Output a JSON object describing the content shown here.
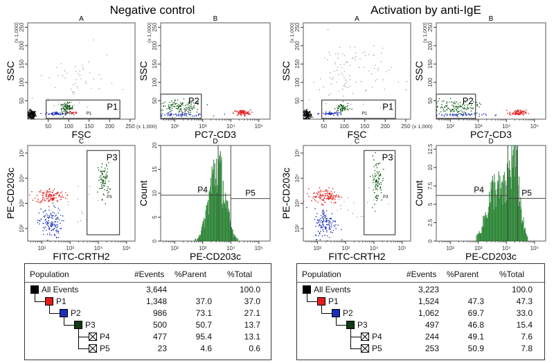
{
  "colors": {
    "black": "#000000",
    "red": "#e41a1a",
    "blue": "#1a2fb8",
    "green": "#0f5a16",
    "hist_fill": "#4cb85a",
    "gate": "#444444",
    "grey": "#777777"
  },
  "halves": [
    {
      "title": "Negative control",
      "plots": [
        {
          "id": "A",
          "letter": "A",
          "type": "scatter",
          "xscale": "linear",
          "yscale": "linear",
          "xlim": [
            0,
            262
          ],
          "ylim": [
            0,
            262
          ],
          "xticks": [
            50,
            100,
            150,
            200,
            250
          ],
          "yticks": [
            50,
            100,
            150,
            200,
            250
          ],
          "xlabel": "FSC",
          "ylabel": "SSC",
          "xunit": "(x 1,000)",
          "yunit": "(x 1,000)",
          "clusters": [
            {
              "center": [
                10,
                12
              ],
              "sd": [
                5,
                6
              ],
              "n": 140,
              "color": "black"
            },
            {
              "center": [
                120,
                100
              ],
              "sd": [
                50,
                50
              ],
              "n": 60,
              "color": "grey"
            },
            {
              "center": [
                70,
                15
              ],
              "sd": [
                13,
                2
              ],
              "n": 60,
              "color": "blue"
            },
            {
              "center": [
                95,
                30
              ],
              "sd": [
                8,
                7
              ],
              "n": 90,
              "color": "green"
            },
            {
              "center": [
                110,
                18
              ],
              "sd": [
                8,
                3
              ],
              "n": 20,
              "color": "red"
            }
          ],
          "gates": [
            {
              "type": "rect",
              "x": [
                45,
                225
              ],
              "y": [
                2,
                52
              ],
              "label": "P1",
              "sublabel": "P1"
            }
          ]
        },
        {
          "id": "B",
          "letter": "B",
          "type": "scatter",
          "xscale": "log",
          "yscale": "linear",
          "xlim": [
            1.5,
            5.4
          ],
          "ylim": [
            0,
            262
          ],
          "xticks": [
            2,
            3,
            4,
            5
          ],
          "yticks": [
            50,
            100,
            150,
            200,
            250
          ],
          "xlabel": "PC7-CD3",
          "ylabel": "SSC",
          "yunit": "(x 1,000)",
          "clusters": [
            {
              "center": [
                2.2,
                33
              ],
              "sd": [
                0.4,
                9
              ],
              "n": 110,
              "color": "green"
            },
            {
              "center": [
                2.2,
                12
              ],
              "sd": [
                0.5,
                2
              ],
              "n": 60,
              "color": "blue"
            },
            {
              "center": [
                4.4,
                17
              ],
              "sd": [
                0.15,
                4
              ],
              "n": 80,
              "color": "red"
            }
          ],
          "gates": [
            {
              "type": "rect",
              "x": [
                1.5,
                2.95
              ],
              "y": [
                2,
                68
              ],
              "label": "P2",
              "sublabel": "P2"
            }
          ]
        },
        {
          "id": "C",
          "letter": "C",
          "type": "scatter",
          "xscale": "log",
          "yscale": "log",
          "xlim": [
            1.5,
            5.3
          ],
          "ylim": [
            1.5,
            5.3
          ],
          "xticks": [
            2,
            3,
            4,
            5
          ],
          "yticks": [
            2,
            3,
            4,
            5
          ],
          "xlabel": "FITC-CRTH2",
          "ylabel": "PE-CD203c",
          "clusters": [
            {
              "center": [
                2.3,
                3.3
              ],
              "sd": [
                0.25,
                0.15
              ],
              "n": 120,
              "color": "red"
            },
            {
              "center": [
                2.3,
                2.2
              ],
              "sd": [
                0.2,
                0.3
              ],
              "n": 130,
              "color": "blue"
            },
            {
              "center": [
                4.2,
                3.9
              ],
              "sd": [
                0.1,
                0.35
              ],
              "n": 80,
              "color": "green"
            },
            {
              "center": [
                3.2,
                3.0
              ],
              "sd": [
                0.5,
                0.4
              ],
              "n": 20,
              "color": "grey"
            }
          ],
          "gates": [
            {
              "type": "rect",
              "x": [
                3.6,
                4.75
              ],
              "y": [
                1.75,
                5.1
              ],
              "label": "P3",
              "sublabel": "P3"
            }
          ]
        },
        {
          "id": "D",
          "letter": "D",
          "type": "histogram",
          "xscale": "log",
          "yscale": "linear",
          "xlim": [
            1.5,
            5.4
          ],
          "ylim": [
            0,
            20
          ],
          "xticks": [
            2,
            3,
            4,
            5
          ],
          "yticks": [
            0,
            5,
            10,
            15,
            20
          ],
          "xlabel": "PE-CD203c",
          "ylabel": "Count",
          "peaks": [
            {
              "mu": 3.5,
              "sd": 0.28,
              "h": 16
            }
          ],
          "vlines": [
            3.55,
            4.0
          ],
          "markers": [
            {
              "label": "P4",
              "x": [
                1.5,
                4.0
              ],
              "y": 9.6
            },
            {
              "label": "P5",
              "x": [
                4.0,
                5.4
              ],
              "y": 8.9
            }
          ]
        }
      ],
      "table": {
        "headers": [
          "Population",
          "#Events",
          "%Parent",
          "%Total"
        ],
        "rows": [
          {
            "name": "All Events",
            "events": "3,644",
            "parent": "",
            "total": "100.0",
            "swatch": "#000000",
            "level": 0
          },
          {
            "name": "P1",
            "events": "1,348",
            "parent": "37.0",
            "total": "37.0",
            "swatch": "#e41a1a",
            "level": 1
          },
          {
            "name": "P2",
            "events": "986",
            "parent": "73.1",
            "total": "27.1",
            "swatch": "#1a2fb8",
            "level": 2
          },
          {
            "name": "P3",
            "events": "500",
            "parent": "50.7",
            "total": "13.7",
            "swatch": "#0f3a12",
            "level": 3
          },
          {
            "name": "P4",
            "events": "477",
            "parent": "95.4",
            "total": "13.1",
            "swatch": "x",
            "level": 4
          },
          {
            "name": "P5",
            "events": "23",
            "parent": "4.6",
            "total": "0.6",
            "swatch": "x",
            "level": 4
          }
        ]
      }
    },
    {
      "title": "Activation by anti-IgE",
      "plots": [
        {
          "id": "A",
          "letter": "A",
          "type": "scatter",
          "xscale": "linear",
          "yscale": "linear",
          "xlim": [
            0,
            262
          ],
          "ylim": [
            0,
            262
          ],
          "xticks": [
            50,
            100,
            150,
            200,
            250
          ],
          "yticks": [
            50,
            100,
            150,
            200,
            250
          ],
          "xlabel": "FSC",
          "ylabel": "SSC",
          "xunit": "(x 1,000)",
          "yunit": "(x 1,000)",
          "clusters": [
            {
              "center": [
                10,
                12
              ],
              "sd": [
                5,
                6
              ],
              "n": 120,
              "color": "black"
            },
            {
              "center": [
                115,
                120
              ],
              "sd": [
                50,
                55
              ],
              "n": 110,
              "color": "grey"
            },
            {
              "center": [
                70,
                15
              ],
              "sd": [
                13,
                2
              ],
              "n": 50,
              "color": "blue"
            },
            {
              "center": [
                95,
                30
              ],
              "sd": [
                8,
                7
              ],
              "n": 60,
              "color": "green"
            }
          ],
          "gates": [
            {
              "type": "rect",
              "x": [
                45,
                225
              ],
              "y": [
                2,
                52
              ],
              "label": "P1",
              "sublabel": "P1"
            }
          ]
        },
        {
          "id": "B",
          "letter": "B",
          "type": "scatter",
          "xscale": "log",
          "yscale": "linear",
          "xlim": [
            1.5,
            5.4
          ],
          "ylim": [
            0,
            262
          ],
          "xticks": [
            2,
            3,
            4,
            5
          ],
          "yticks": [
            50,
            100,
            150,
            200,
            250
          ],
          "xlabel": "PC7-CD3",
          "ylabel": "SSC",
          "yunit": "(x 1,000)",
          "clusters": [
            {
              "center": [
                2.2,
                33
              ],
              "sd": [
                0.4,
                9
              ],
              "n": 110,
              "color": "green"
            },
            {
              "center": [
                2.2,
                12
              ],
              "sd": [
                0.5,
                2
              ],
              "n": 60,
              "color": "blue"
            },
            {
              "center": [
                4.4,
                17
              ],
              "sd": [
                0.15,
                4
              ],
              "n": 80,
              "color": "red"
            }
          ],
          "gates": [
            {
              "type": "rect",
              "x": [
                1.5,
                2.9
              ],
              "y": [
                2,
                68
              ],
              "label": "P2",
              "sublabel": ""
            }
          ]
        },
        {
          "id": "C",
          "letter": "C",
          "type": "scatter",
          "xscale": "log",
          "yscale": "log",
          "xlim": [
            1.5,
            5.3
          ],
          "ylim": [
            1.5,
            5.3
          ],
          "xticks": [
            2,
            3,
            4,
            5
          ],
          "yticks": [
            2,
            3,
            4,
            5
          ],
          "xlabel": "FITC-CRTH2",
          "ylabel": "PE-CD203c",
          "clusters": [
            {
              "center": [
                2.3,
                3.3
              ],
              "sd": [
                0.25,
                0.15
              ],
              "n": 120,
              "color": "red"
            },
            {
              "center": [
                2.3,
                2.2
              ],
              "sd": [
                0.2,
                0.3
              ],
              "n": 130,
              "color": "blue"
            },
            {
              "center": [
                4.1,
                3.9
              ],
              "sd": [
                0.1,
                0.45
              ],
              "n": 90,
              "color": "green"
            },
            {
              "center": [
                3.2,
                3.0
              ],
              "sd": [
                0.5,
                0.4
              ],
              "n": 20,
              "color": "grey"
            }
          ],
          "gates": [
            {
              "type": "rect",
              "x": [
                3.65,
                4.75
              ],
              "y": [
                1.75,
                5.1
              ],
              "label": "P3",
              "sublabel": "P3"
            }
          ]
        },
        {
          "id": "D",
          "letter": "D",
          "type": "histogram",
          "xscale": "log",
          "yscale": "linear",
          "xlim": [
            1.5,
            5.4
          ],
          "ylim": [
            0,
            13
          ],
          "xticks": [
            2,
            3,
            4,
            5
          ],
          "yticks": [
            0,
            2.5,
            5,
            7.5,
            10,
            12.5
          ],
          "xlabel": "PE-CD203c",
          "ylabel": "Count",
          "peaks": [
            {
              "mu": 3.6,
              "sd": 0.3,
              "h": 7.5
            },
            {
              "mu": 4.25,
              "sd": 0.2,
              "h": 11
            }
          ],
          "vlines": [
            4.05,
            4.4
          ],
          "markers": [
            {
              "label": "P4",
              "x": [
                1.5,
                4.05
              ],
              "y": 6.2
            },
            {
              "label": "P5",
              "x": [
                4.05,
                5.4
              ],
              "y": 5.8
            }
          ]
        }
      ],
      "table": {
        "headers": [
          "Population",
          "#Events",
          "%Parent",
          "%Total"
        ],
        "rows": [
          {
            "name": "All Events",
            "events": "3,223",
            "parent": "",
            "total": "100.0",
            "swatch": "#000000",
            "level": 0
          },
          {
            "name": "P1",
            "events": "1,524",
            "parent": "47.3",
            "total": "47.3",
            "swatch": "#e41a1a",
            "level": 1
          },
          {
            "name": "P2",
            "events": "1,062",
            "parent": "69.7",
            "total": "33.0",
            "swatch": "#1a2fb8",
            "level": 2
          },
          {
            "name": "P3",
            "events": "497",
            "parent": "46.8",
            "total": "15.4",
            "swatch": "#0f3a12",
            "level": 3
          },
          {
            "name": "P4",
            "events": "244",
            "parent": "49.1",
            "total": "7.6",
            "swatch": "x",
            "level": 4
          },
          {
            "name": "P5",
            "events": "253",
            "parent": "50.9",
            "total": "7.8",
            "swatch": "x",
            "level": 4
          }
        ]
      }
    }
  ]
}
